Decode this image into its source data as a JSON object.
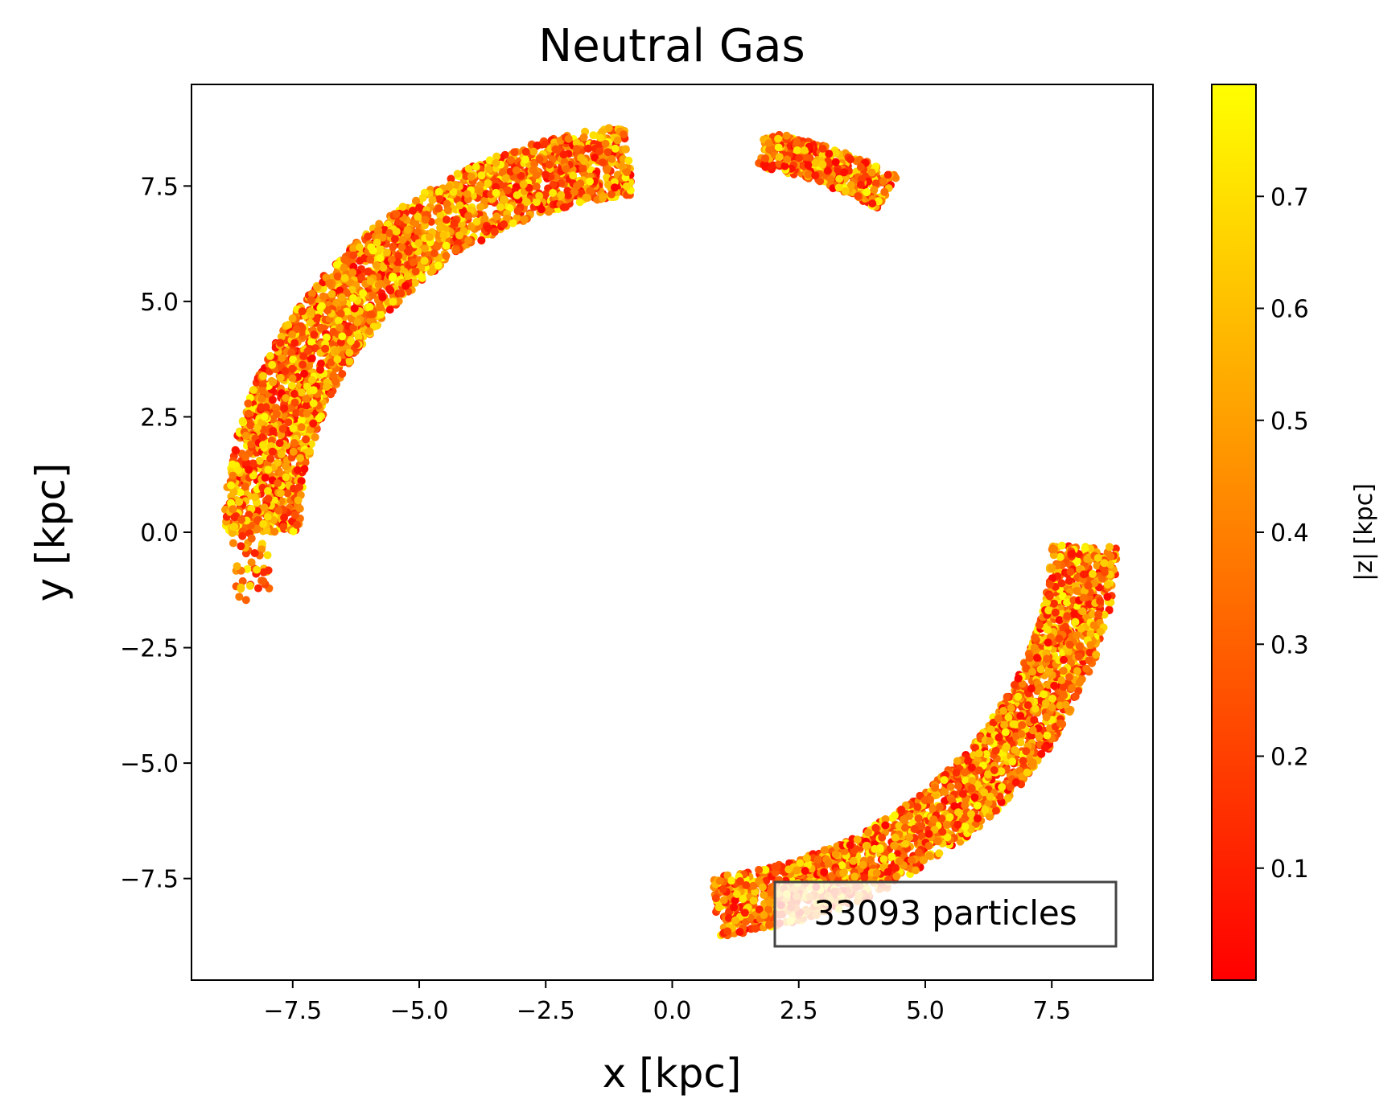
{
  "chart_data": {
    "type": "scatter",
    "title": "Neutral Gas",
    "xlabel": "x [kpc]",
    "ylabel": "y [kpc]",
    "xlim": [
      -9.5,
      9.5
    ],
    "ylim": [
      -9.7,
      9.7
    ],
    "xticks": [
      -7.5,
      -5.0,
      -2.5,
      0.0,
      2.5,
      5.0,
      7.5
    ],
    "yticks": [
      -7.5,
      -5.0,
      -2.5,
      0.0,
      2.5,
      5.0,
      7.5
    ],
    "xtick_labels": [
      "−7.5",
      "−5.0",
      "−2.5",
      "0.0",
      "2.5",
      "5.0",
      "7.5"
    ],
    "ytick_labels": [
      "−7.5",
      "−5.0",
      "−2.5",
      "0.0",
      "2.5",
      "5.0",
      "7.5"
    ],
    "grid": false,
    "colorbar": {
      "label": "|z| [kpc]",
      "range": [
        0.0,
        0.8
      ],
      "ticks": [
        0.1,
        0.2,
        0.3,
        0.4,
        0.5,
        0.6,
        0.7
      ],
      "tick_labels": [
        "0.1",
        "0.2",
        "0.3",
        "0.4",
        "0.5",
        "0.6",
        "0.7"
      ],
      "colormap": "autumn",
      "color_low": "#ff0000",
      "color_high": "#ffff00"
    },
    "annotation": "33093 particles",
    "regions": [
      {
        "angle_from_deg": 96,
        "angle_to_deg": 180,
        "r_inner": 7.35,
        "r_outer": 8.85
      },
      {
        "angle_from_deg": 60,
        "angle_to_deg": 78,
        "r_inner": 8.1,
        "r_outer": 8.9
      },
      {
        "angle_from_deg": 276,
        "angle_to_deg": 358,
        "r_inner": 7.5,
        "r_outer": 8.8
      },
      {
        "angle_from_deg": 178,
        "angle_to_deg": 190,
        "r_inner": 8.0,
        "r_outer": 8.7
      }
    ]
  }
}
